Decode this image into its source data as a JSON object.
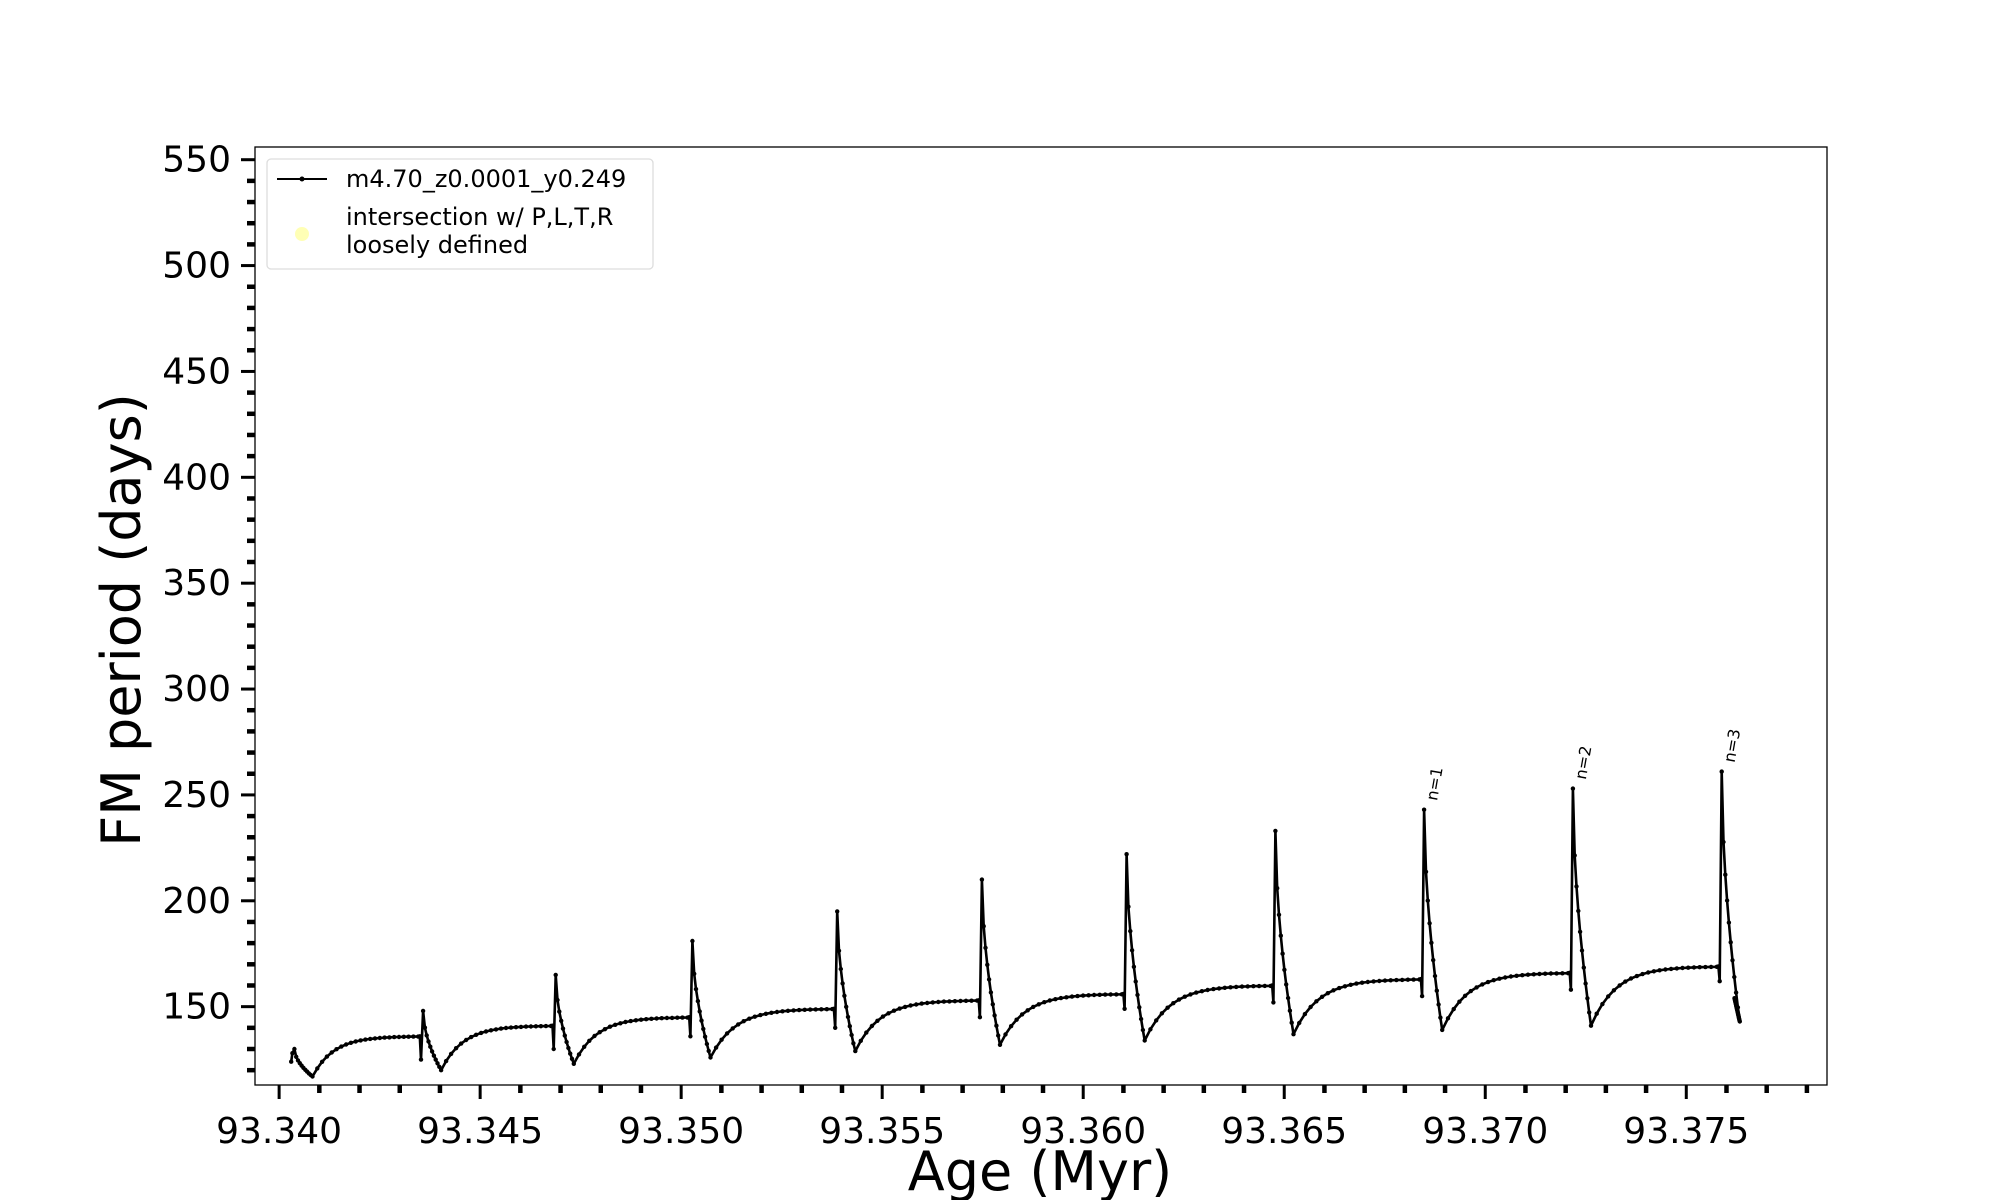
{
  "chart_data": {
    "type": "line",
    "title": "",
    "xlabel": "Age (Myr)",
    "ylabel": "FM period (days)",
    "xlim": [
      93.3394,
      93.3785
    ],
    "ylim": [
      113,
      556
    ],
    "grid": false,
    "legend_position": "top-left",
    "x_ticks": [
      "93.340",
      "93.345",
      "93.350",
      "93.355",
      "93.360",
      "93.365",
      "93.370",
      "93.375"
    ],
    "y_ticks": [
      "150",
      "200",
      "250",
      "300",
      "350",
      "400",
      "450",
      "500",
      "550"
    ],
    "legend": [
      {
        "label": "m4.70_z0.0001_y0.249",
        "marker": "line-dot",
        "color": "#000000"
      },
      {
        "label": "intersection w/ P,L,T,R\nloosely defined",
        "marker": "circle",
        "color": "#ffffa8"
      }
    ],
    "series": [
      {
        "name": "m4.70_z0.0001_y0.249",
        "color": "#000000",
        "cycles": [
          {
            "start": 93.3403,
            "peak": 130,
            "dip": 128,
            "min": 117,
            "plateau": 136
          },
          {
            "start": 93.3435,
            "peak": 148,
            "dip": 125,
            "min": 120,
            "plateau": 141
          },
          {
            "start": 93.3468,
            "peak": 165,
            "dip": 130,
            "min": 123,
            "plateau": 145
          },
          {
            "start": 93.3502,
            "peak": 181,
            "dip": 136,
            "min": 126,
            "plateau": 149
          },
          {
            "start": 93.3538,
            "peak": 195,
            "dip": 140,
            "min": 129,
            "plateau": 153
          },
          {
            "start": 93.3574,
            "peak": 210,
            "dip": 145,
            "min": 132,
            "plateau": 156
          },
          {
            "start": 93.361,
            "peak": 222,
            "dip": 149,
            "min": 134,
            "plateau": 160
          },
          {
            "start": 93.3647,
            "peak": 233,
            "dip": 152,
            "min": 137,
            "plateau": 163
          },
          {
            "start": 93.3684,
            "peak": 243,
            "dip": 155,
            "min": 139,
            "plateau": 166
          },
          {
            "start": 93.3721,
            "peak": 253,
            "dip": 158,
            "min": 141,
            "plateau": 169
          },
          {
            "start": 93.3758,
            "peak": 261,
            "dip": 162,
            "min": 143,
            "plateau": 170
          }
        ],
        "end": {
          "x": 93.3762,
          "y": 154
        }
      }
    ],
    "annotations": [
      {
        "text": "n=1",
        "x": 93.3685,
        "y": 247
      },
      {
        "text": "n=2",
        "x": 93.3722,
        "y": 257
      },
      {
        "text": "n=3",
        "x": 93.3759,
        "y": 265
      }
    ]
  }
}
